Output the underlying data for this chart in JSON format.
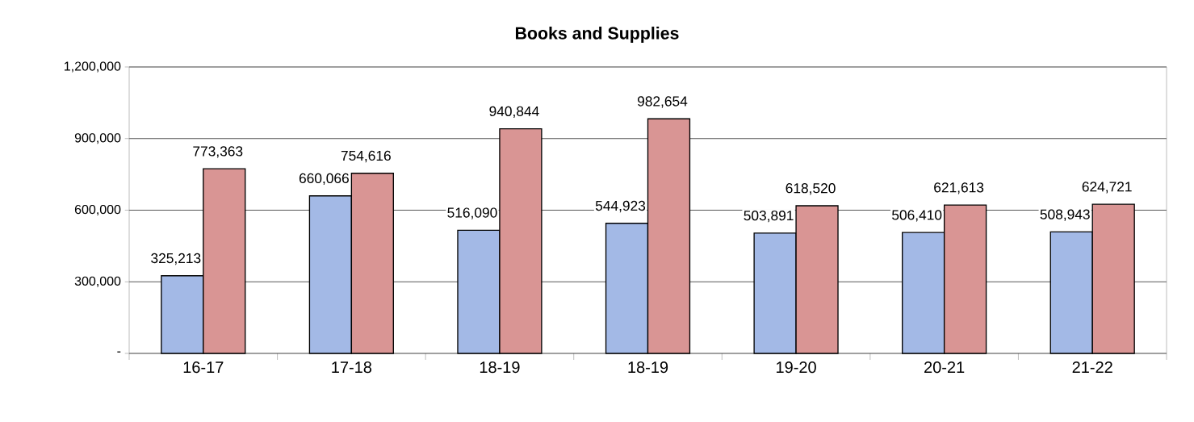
{
  "chart_data": {
    "type": "bar",
    "title": "Books and Supplies",
    "categories": [
      "16-17",
      "17-18",
      "18-19",
      "18-19",
      "19-20",
      "20-21",
      "21-22"
    ],
    "series": [
      {
        "color": "#a3b9e6",
        "values": [
          325213,
          660066,
          516090,
          544923,
          503891,
          506410,
          508943
        ],
        "value_labels": [
          "325,213",
          "660,066",
          "516,090",
          "544,923",
          "503,891",
          "506,410",
          "508,943"
        ]
      },
      {
        "color": "#d99594",
        "values": [
          773363,
          754616,
          940844,
          982654,
          618520,
          621613,
          624721
        ],
        "value_labels": [
          "773,363",
          "754,616",
          "940,844",
          "982,654",
          "618,520",
          "621,613",
          "624,721"
        ]
      }
    ],
    "ylim": [
      0,
      1200000
    ],
    "yticks": [
      {
        "value": 0,
        "label": "-"
      },
      {
        "value": 300000,
        "label": "300,000"
      },
      {
        "value": 600000,
        "label": "600,000"
      },
      {
        "value": 900000,
        "label": "900,000"
      },
      {
        "value": 1200000,
        "label": "1,200,000"
      }
    ],
    "grid": "y"
  }
}
